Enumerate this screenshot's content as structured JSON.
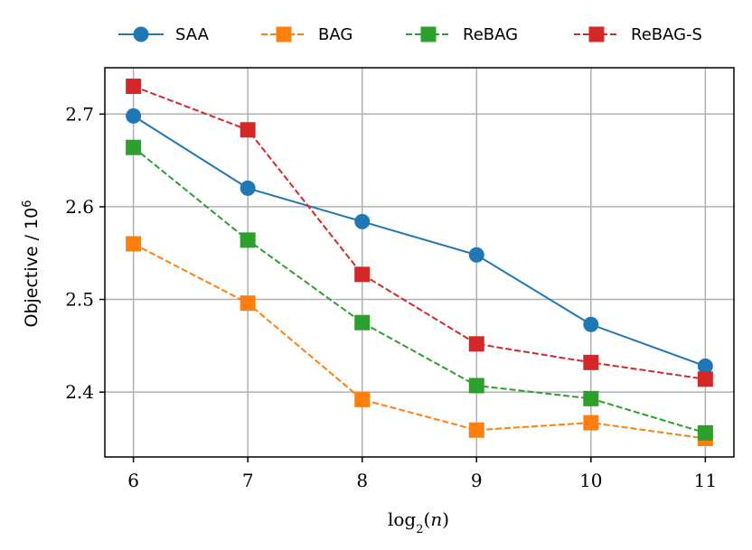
{
  "chart_data": {
    "type": "line",
    "xlabel": "log2(n)",
    "ylabel": "Objective / 10^6",
    "xlim": [
      5.75,
      11.25
    ],
    "ylim": [
      2.33,
      2.75
    ],
    "xticks": [
      6,
      7,
      8,
      9,
      10,
      11
    ],
    "yticks": [
      2.4,
      2.5,
      2.6,
      2.7
    ],
    "ytick_labels": [
      "2.4",
      "2.5",
      "2.6",
      "2.7"
    ],
    "grid": true,
    "legend_position": "top",
    "x": [
      6,
      7,
      8,
      9,
      10,
      11
    ],
    "series": [
      {
        "name": "SAA",
        "color": "#1f77b4",
        "marker": "circle",
        "linestyle": "solid",
        "values": [
          2.698,
          2.62,
          2.584,
          2.548,
          2.473,
          2.428
        ]
      },
      {
        "name": "BAG",
        "color": "#ff7f0e",
        "marker": "square",
        "linestyle": "dashed",
        "values": [
          2.56,
          2.496,
          2.392,
          2.359,
          2.367,
          2.35
        ]
      },
      {
        "name": "ReBAG",
        "color": "#2ca02c",
        "marker": "square",
        "linestyle": "dashed",
        "values": [
          2.664,
          2.564,
          2.475,
          2.407,
          2.393,
          2.356
        ]
      },
      {
        "name": "ReBAG-S",
        "color": "#d62728",
        "marker": "square",
        "linestyle": "dashed",
        "values": [
          2.73,
          2.683,
          2.527,
          2.452,
          2.432,
          2.414
        ]
      }
    ]
  }
}
